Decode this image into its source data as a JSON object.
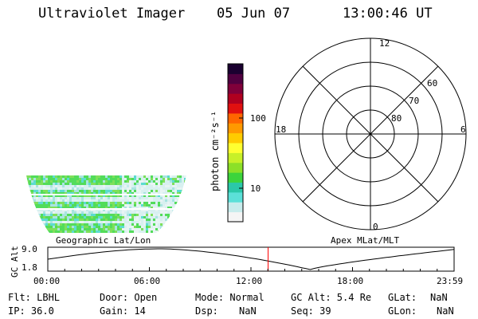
{
  "header": {
    "instrument": "Ultraviolet Imager",
    "date": "05 Jun 07",
    "time": "13:00:46 UT"
  },
  "colorbar": {
    "label": "photon cm⁻²s⁻¹",
    "ticks": [
      "100",
      "10"
    ],
    "colors": [
      "#f5f5f5",
      "#c8ecec",
      "#5ce0d8",
      "#2bc8a8",
      "#3cd43c",
      "#8ce028",
      "#c8f028",
      "#ffff30",
      "#ffcc00",
      "#ff9900",
      "#ff6600",
      "#e01010",
      "#b00020",
      "#80003a",
      "#500040",
      "#1a0030"
    ]
  },
  "geo_map": {
    "label": "Geographic Lat/Lon"
  },
  "polar_plot": {
    "label": "Apex MLat/MLT",
    "mlt_labels": {
      "top": "12",
      "right": "6",
      "bottom": "0",
      "left": "18"
    },
    "lat_labels": [
      "60",
      "70",
      "80"
    ]
  },
  "altitude_plot": {
    "ylabel": "GC Alt",
    "yticks": [
      "9.0",
      "1.8"
    ],
    "xticks": [
      "00:00",
      "06:00",
      "12:00",
      "18:00",
      "23:59"
    ],
    "current_time_hours": 13.013,
    "current_color": "#ff0000"
  },
  "info": {
    "row1": {
      "flt": "Flt: LBHL",
      "door": "Door: Open",
      "mode": "Mode: Normal",
      "gcalt": "GC Alt: 5.4 Re",
      "glat_label": "GLat:",
      "glat_value": "NaN"
    },
    "row2": {
      "ip": "IP: 36.0",
      "gain": "Gain: 14",
      "dsp_label": "Dsp:",
      "dsp_value": "NaN",
      "seq": "Seq: 39",
      "glon_label": "GLon:",
      "glon_value": "NaN"
    }
  }
}
